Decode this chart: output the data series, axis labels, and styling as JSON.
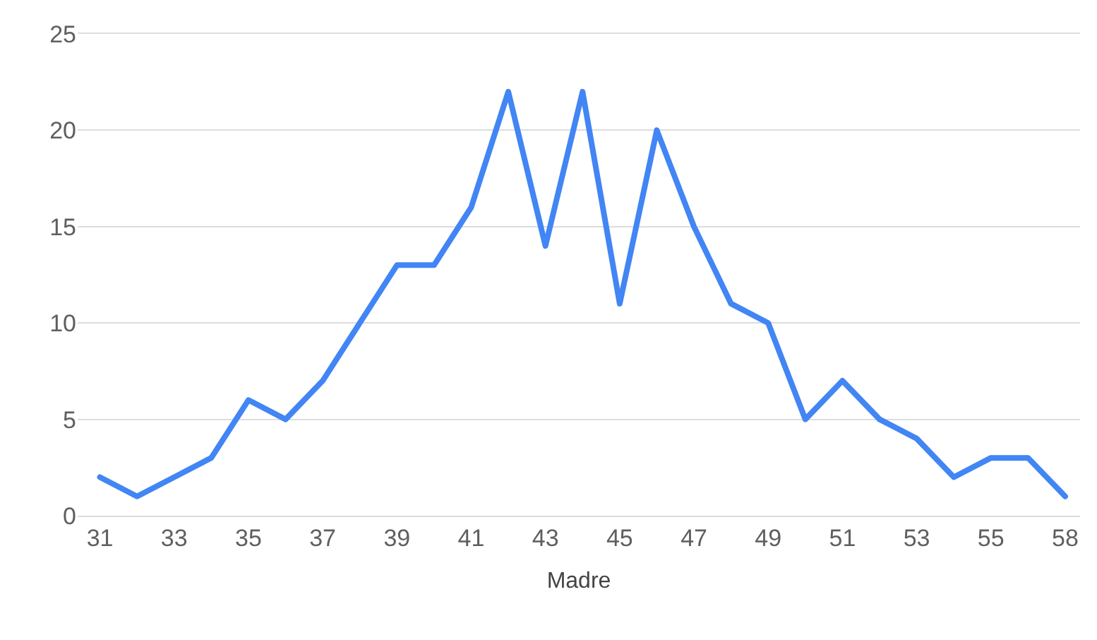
{
  "chart_data": {
    "type": "line",
    "xlabel": "Madre",
    "categories": [
      "31",
      null,
      "33",
      null,
      "35",
      null,
      "37",
      null,
      "39",
      null,
      "41",
      null,
      "43",
      null,
      "45",
      null,
      "47",
      null,
      "49",
      null,
      "51",
      null,
      "53",
      null,
      "55",
      null,
      "58"
    ],
    "series": [
      {
        "color": "#4285f4",
        "values": [
          2,
          1,
          2,
          3,
          6,
          5,
          7,
          10,
          13,
          13,
          16,
          22,
          14,
          22,
          11,
          20,
          15,
          11,
          10,
          5,
          7,
          5,
          4,
          2,
          3,
          3,
          1
        ]
      }
    ],
    "ylim": [
      0,
      25
    ],
    "yticks": [
      0,
      5,
      10,
      15,
      20,
      25
    ],
    "grid": "y",
    "legend": false,
    "marker": "none",
    "line_style": "solid"
  }
}
